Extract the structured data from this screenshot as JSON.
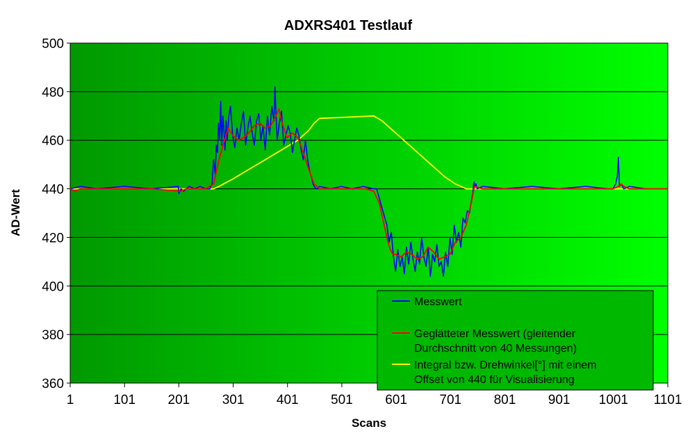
{
  "chart_data": {
    "type": "line",
    "title": "ADXRS401 Testlauf",
    "xlabel": "Scans",
    "ylabel": "AD-Wert",
    "xlim": [
      1,
      1101
    ],
    "ylim": [
      360,
      500
    ],
    "x_ticks": [
      1,
      101,
      201,
      301,
      401,
      501,
      601,
      701,
      801,
      901,
      1001,
      1101
    ],
    "y_ticks": [
      360,
      380,
      400,
      420,
      440,
      460,
      480,
      500
    ],
    "grid": "horizontal",
    "legend_position": "bottom-right",
    "background": [
      "#009900",
      "#00ff00"
    ],
    "series": [
      {
        "name": "Messwert",
        "color": "#0000ff",
        "x": [
          1,
          20,
          50,
          100,
          150,
          200,
          201,
          205,
          210,
          220,
          230,
          240,
          250,
          258,
          262,
          265,
          268,
          270,
          272,
          274,
          276,
          278,
          280,
          282,
          284,
          286,
          288,
          290,
          293,
          296,
          300,
          304,
          308,
          312,
          316,
          320,
          324,
          328,
          332,
          336,
          340,
          344,
          348,
          352,
          356,
          360,
          364,
          368,
          372,
          376,
          378,
          380,
          382,
          386,
          390,
          394,
          398,
          402,
          406,
          410,
          414,
          418,
          422,
          426,
          430,
          434,
          438,
          442,
          446,
          448,
          450,
          454,
          460,
          480,
          500,
          520,
          540,
          560,
          565,
          570,
          575,
          580,
          584,
          588,
          592,
          596,
          600,
          604,
          608,
          612,
          616,
          620,
          624,
          628,
          632,
          636,
          640,
          644,
          648,
          652,
          656,
          660,
          664,
          668,
          672,
          676,
          680,
          684,
          688,
          692,
          696,
          700,
          704,
          708,
          712,
          716,
          720,
          724,
          728,
          732,
          736,
          740,
          742,
          744,
          746,
          748,
          750,
          760,
          800,
          850,
          900,
          950,
          990,
          1000,
          1005,
          1008,
          1010,
          1012,
          1015,
          1020,
          1030,
          1060,
          1101
        ],
        "values": [
          440,
          441,
          440,
          441,
          440,
          441,
          438,
          440,
          439,
          441,
          440,
          441,
          440,
          440,
          442,
          452,
          446,
          458,
          455,
          467,
          460,
          476,
          458,
          470,
          464,
          456,
          468,
          460,
          470,
          474,
          462,
          457,
          465,
          460,
          467,
          472,
          458,
          465,
          470,
          463,
          458,
          468,
          471,
          460,
          466,
          456,
          470,
          462,
          474,
          468,
          482,
          470,
          460,
          467,
          472,
          458,
          462,
          466,
          463,
          455,
          460,
          465,
          462,
          456,
          452,
          460,
          452,
          447,
          444,
          442,
          441,
          440,
          441,
          440,
          441,
          440,
          441,
          440,
          440,
          436,
          432,
          428,
          425,
          418,
          422,
          412,
          406,
          415,
          408,
          412,
          405,
          416,
          409,
          418,
          411,
          406,
          414,
          409,
          420,
          412,
          408,
          416,
          404,
          413,
          410,
          417,
          408,
          410,
          404,
          414,
          408,
          420,
          413,
          425,
          418,
          422,
          416,
          428,
          426,
          431,
          430,
          436,
          438,
          443,
          441,
          442,
          440,
          441,
          440,
          441,
          440,
          441,
          440,
          440,
          442,
          445,
          453,
          441,
          442,
          440,
          441,
          440,
          440
        ]
      },
      {
        "name": "Geglätteter Messwert (gleitender Durchschnitt von 40 Messungen)",
        "color": "#ff0000",
        "x": [
          1,
          10,
          20,
          50,
          100,
          150,
          205,
          215,
          250,
          265,
          275,
          285,
          292,
          300,
          310,
          320,
          330,
          340,
          350,
          360,
          370,
          380,
          385,
          390,
          400,
          410,
          420,
          430,
          440,
          450,
          460,
          500,
          545,
          560,
          570,
          575,
          580,
          585,
          590,
          595,
          600,
          610,
          620,
          630,
          640,
          650,
          660,
          670,
          680,
          690,
          700,
          710,
          720,
          730,
          740,
          745,
          760,
          800,
          900,
          1000,
          1010,
          1015,
          1020,
          1030,
          1101
        ],
        "values": [
          440,
          439,
          440,
          440,
          440,
          440,
          439,
          440,
          440,
          442,
          452,
          460,
          465,
          462,
          460,
          461,
          463,
          466,
          467,
          465,
          466,
          470,
          473,
          468,
          461,
          463,
          461,
          455,
          448,
          442,
          440,
          440,
          440,
          439,
          434,
          429,
          424,
          419,
          415,
          413,
          413,
          412,
          414,
          413,
          411,
          412,
          416,
          414,
          411,
          412,
          413,
          418,
          420,
          425,
          435,
          441,
          440,
          440,
          440,
          440,
          441,
          442,
          441,
          440,
          440
        ]
      },
      {
        "name": "Integral bzw. Drehwinkel[°] mit einem Offset von 440 für Visualisierung",
        "color": "#ffff00",
        "x": [
          1,
          265,
          275,
          300,
          330,
          360,
          390,
          420,
          440,
          450,
          460,
          560,
          575,
          590,
          610,
          630,
          650,
          670,
          690,
          710,
          730,
          745,
          1000,
          1101
        ],
        "values": [
          440,
          440,
          441,
          444,
          448,
          452,
          456,
          460,
          464,
          467,
          469,
          470,
          468,
          465,
          461,
          457,
          453,
          449,
          445,
          442,
          440,
          440,
          440,
          440
        ]
      }
    ]
  }
}
